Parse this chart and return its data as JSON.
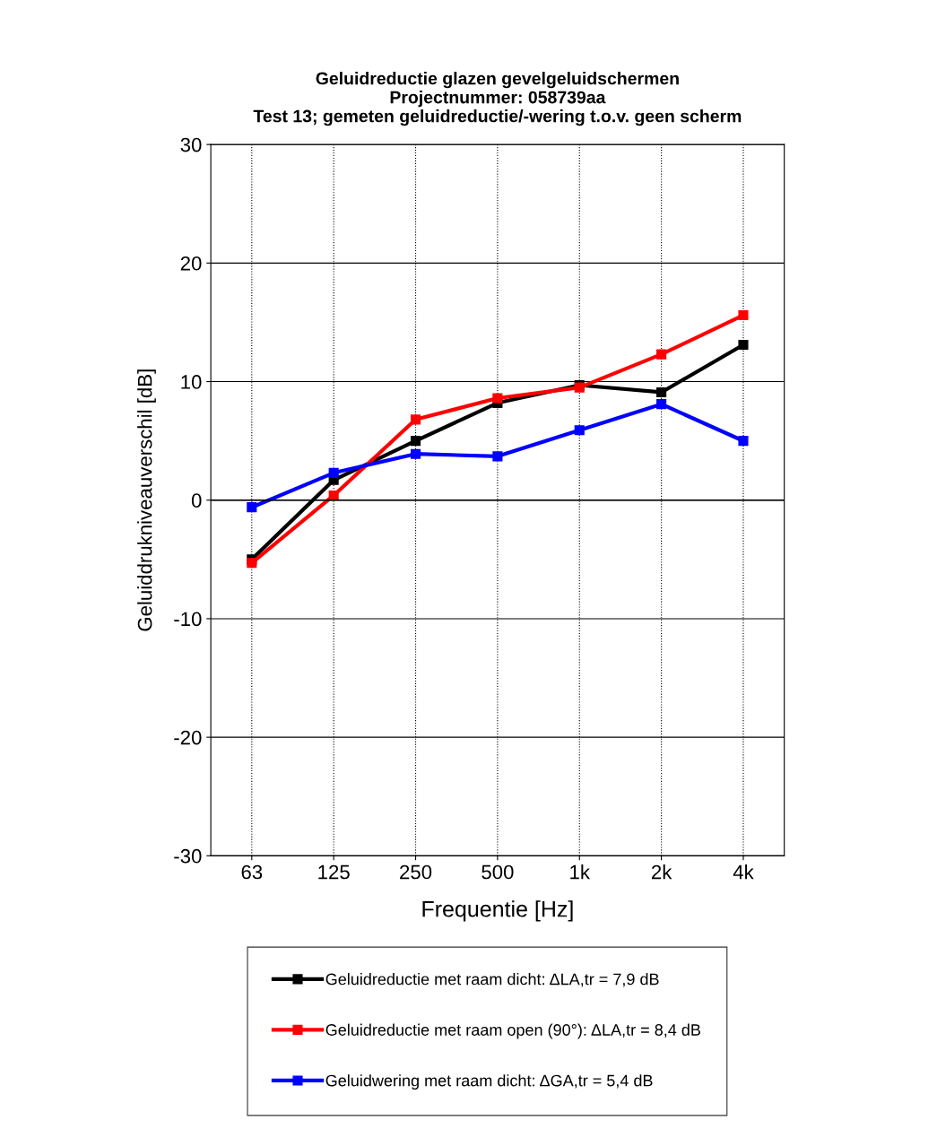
{
  "chart_data": {
    "type": "line",
    "title": "Geluidreductie glazen gevelgeluidschermen\nProjectnummer: 058739aa\nTest 13; gemeten geluidreductie/-wering t.o.v. geen scherm",
    "xlabel": "Frequentie [Hz]",
    "ylabel": "Geluiddrukniveauverschil [dB]",
    "categories": [
      "63",
      "125",
      "250",
      "500",
      "1k",
      "2k",
      "4k"
    ],
    "series": [
      {
        "name": "Geluidreductie met raam dicht: ΔLA,tr = 7,9 dB",
        "color": "#000000",
        "values": [
          -5.0,
          1.7,
          5.0,
          8.2,
          9.7,
          9.1,
          13.1
        ]
      },
      {
        "name": "Geluidreductie met raam open (90°): ΔLA,tr = 8,4 dB",
        "color": "#ff0000",
        "values": [
          -5.3,
          0.4,
          6.8,
          8.6,
          9.5,
          12.3,
          15.6
        ]
      },
      {
        "name": "Geluidwering met raam dicht: ΔGA,tr = 5,4 dB",
        "color": "#0000ff",
        "values": [
          -0.6,
          2.3,
          3.9,
          3.7,
          5.9,
          8.1,
          5.0
        ]
      }
    ],
    "ylim": [
      -30,
      30
    ],
    "yticks": [
      -30,
      -20,
      -10,
      0,
      10,
      20,
      30
    ],
    "grid": true,
    "legend": "bottom",
    "marker": "square",
    "line_style": "solid"
  }
}
